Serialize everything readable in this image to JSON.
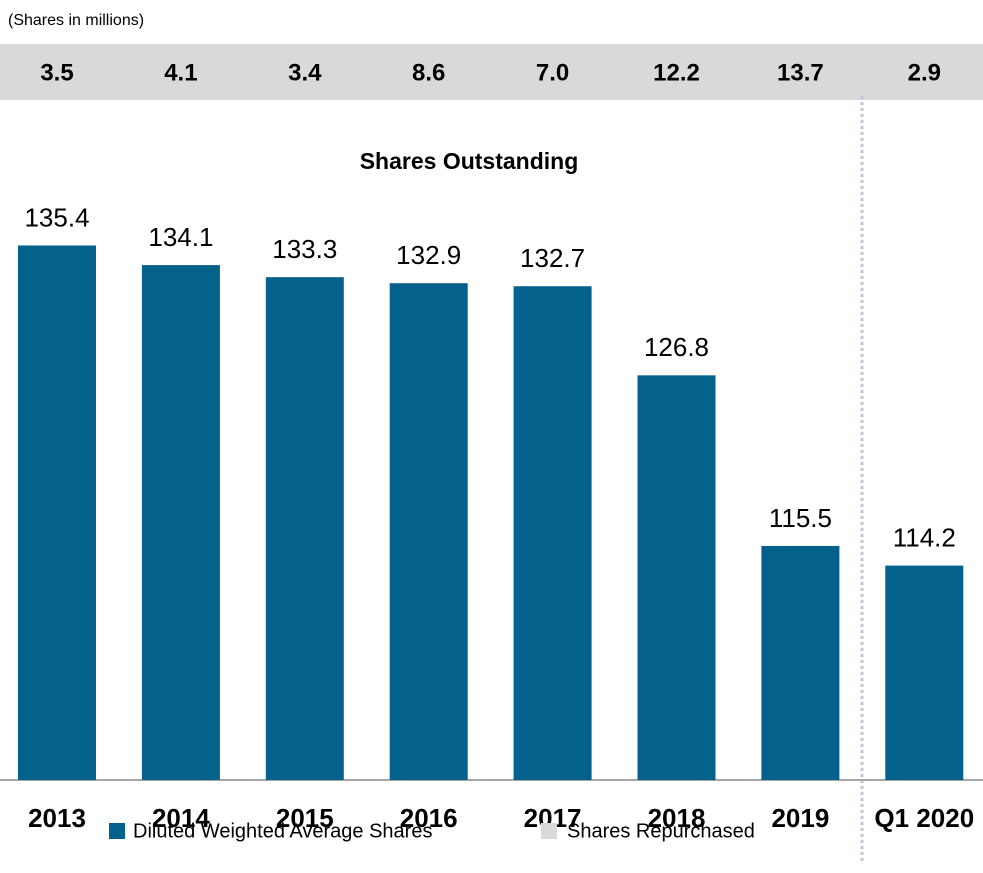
{
  "chart_data": {
    "type": "bar",
    "title": "Shares Outstanding",
    "subtitle": "(Shares in millions)",
    "categories": [
      "2013",
      "2014",
      "2015",
      "2016",
      "2017",
      "2018",
      "2019",
      "Q1 2020"
    ],
    "series": [
      {
        "name": "Diluted Weighted Average Shares",
        "color": "#04618b",
        "values": [
          135.4,
          134.1,
          133.3,
          132.9,
          132.7,
          126.8,
          115.5,
          114.2
        ]
      },
      {
        "name": "Shares Repurchased",
        "color": "#d9d9d9",
        "values": [
          3.5,
          4.1,
          3.4,
          8.6,
          7.0,
          12.2,
          13.7,
          2.9
        ],
        "value_labels": [
          "3.5",
          "4.1",
          "3.4",
          "8.6",
          "7.0",
          "12.2",
          "13.7",
          "2.9"
        ]
      }
    ],
    "ylim": [
      100,
      140
    ]
  }
}
